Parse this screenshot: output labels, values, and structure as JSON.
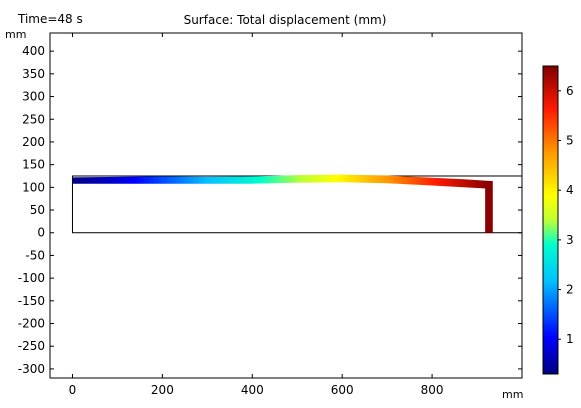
{
  "chart_data": {
    "type": "surface",
    "title": "Surface: Total displacement (mm)",
    "time_label": "Time=48 s",
    "x_unit": "mm",
    "y_unit": "mm",
    "xlim": [
      -50,
      1000
    ],
    "ylim": [
      -320,
      440
    ],
    "x_ticks": [
      0,
      200,
      400,
      600,
      800
    ],
    "y_ticks": [
      400,
      350,
      300,
      250,
      200,
      150,
      100,
      50,
      0,
      -50,
      -100,
      -150,
      -200,
      -250,
      -300
    ],
    "undeformed_domain": {
      "x": [
        0,
        1000
      ],
      "y": [
        0,
        125
      ]
    },
    "deformed_profile": {
      "x": [
        0,
        100,
        200,
        300,
        400,
        500,
        600,
        700,
        800,
        870,
        930
      ],
      "top": [
        122,
        123,
        124,
        123,
        124,
        127,
        128,
        126,
        121,
        118,
        114
      ],
      "bottom": [
        108,
        108,
        108,
        108,
        108,
        110,
        111,
        109,
        104,
        100,
        97
      ],
      "displacement": [
        0.2,
        1.0,
        1.4,
        1.8,
        2.4,
        3.1,
        4.0,
        4.6,
        5.4,
        6.0,
        6.3
      ]
    },
    "tip_column": {
      "x": [
        918,
        935
      ],
      "y": [
        0,
        114
      ],
      "displacement": 6.3
    },
    "colorbar": {
      "min": 0.3,
      "max": 6.5,
      "ticks": [
        1,
        2,
        3,
        4,
        5,
        6
      ],
      "colormap": "rainbow"
    }
  }
}
